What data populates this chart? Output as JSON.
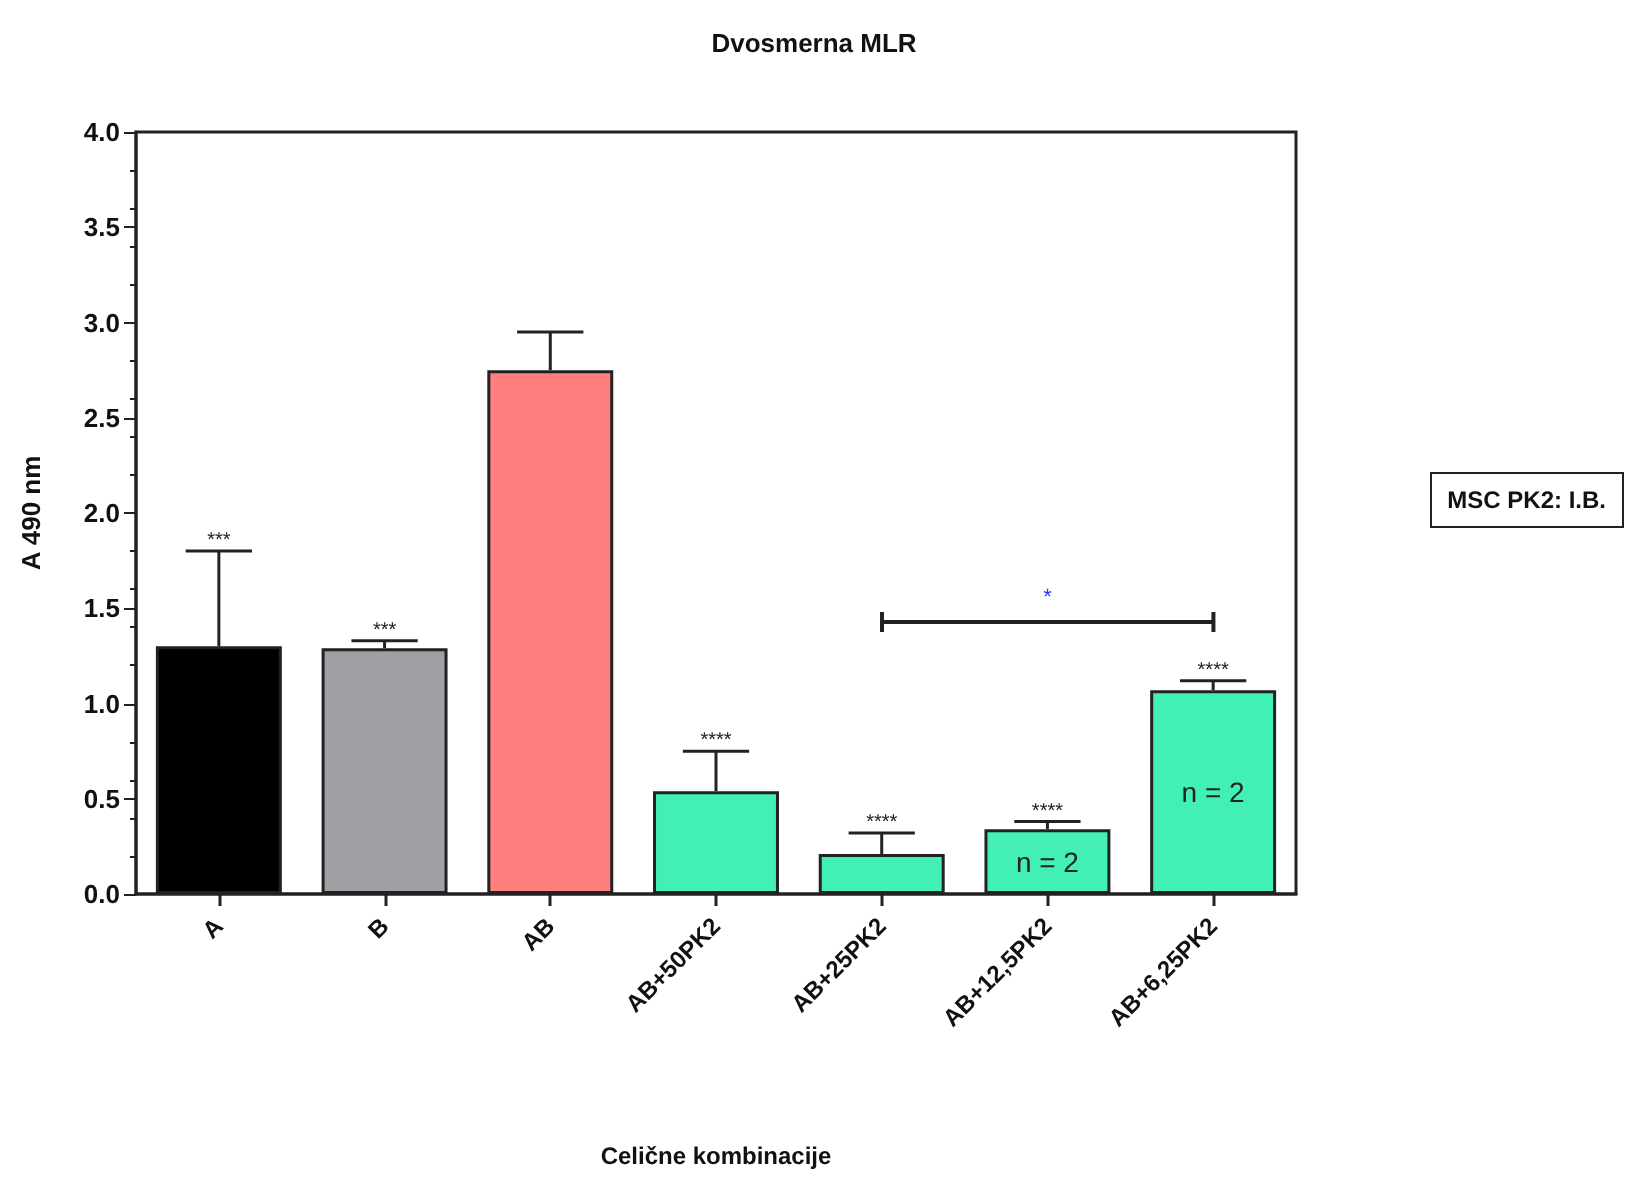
{
  "chart_data": {
    "type": "bar",
    "title": "Dvosmerna MLR",
    "xlabel": "Celične kombinacije",
    "ylabel": "A 490 nm",
    "categories": [
      "A",
      "B",
      "AB",
      "AB+50PK2",
      "AB+25PK2",
      "AB+12,5PK2",
      "AB+6,25PK2"
    ],
    "values": [
      1.3,
      1.29,
      2.75,
      0.54,
      0.21,
      0.34,
      1.07
    ],
    "colors": [
      "#000000",
      "#a09fa4",
      "#ff7f7f",
      "#43f0b4",
      "#43f0b4",
      "#43f0b4",
      "#43f0b4"
    ],
    "errors": [
      [
        1.3,
        1.8
      ],
      [
        1.29,
        1.33
      ],
      [
        2.75,
        2.95
      ],
      [
        0.54,
        0.75
      ],
      [
        0.21,
        0.32
      ],
      [
        0.34,
        0.38
      ],
      [
        1.07,
        1.12
      ]
    ],
    "ylim": [
      0,
      4
    ],
    "yticks": [
      {
        "value": 0,
        "label": "0.0"
      },
      0.5,
      {
        "value": 1,
        "label": "1.0"
      },
      1.5,
      {
        "value": 2,
        "label": "2.0"
      },
      2.5,
      {
        "value": 3,
        "label": "3.0"
      },
      3.5,
      {
        "value": 4,
        "label": "4.0"
      }
    ],
    "grid": false,
    "annotations": [
      {
        "text": "***",
        "x": "A",
        "y": 1.8
      },
      {
        "text": "***",
        "x": "B",
        "y": 1.33
      },
      {
        "text": "****",
        "x": "AB+50PK2",
        "y": 0.75
      },
      {
        "text": "****",
        "x": "AB+25PK2",
        "y": 0.32
      },
      {
        "text": "****",
        "x": "AB+12,5PK2",
        "y": 0.38
      },
      {
        "text": "****",
        "x": "AB+6,25PK2",
        "y": 1.12
      },
      "n = 2",
      "n = 2",
      "*",
      "MSC PK2: I.B."
    ]
  }
}
